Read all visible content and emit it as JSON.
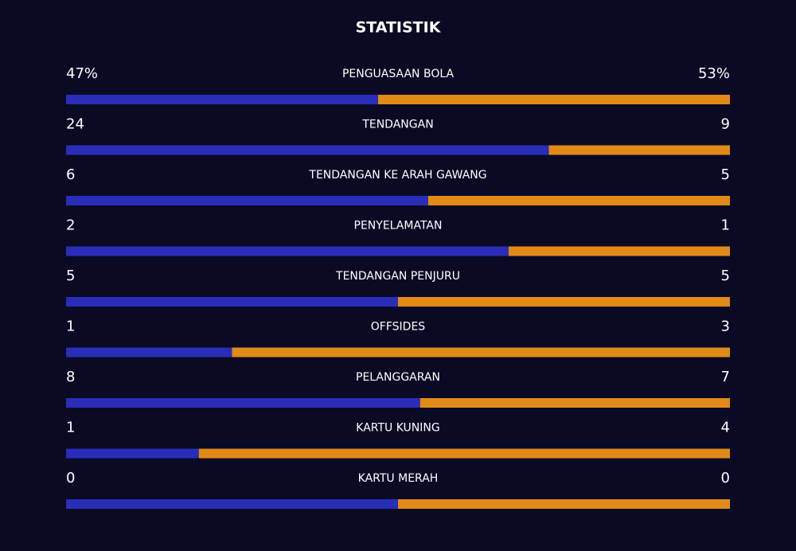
{
  "title": "STATISTIK",
  "colors": {
    "home": "#2a2db8",
    "away": "#e28a17"
  },
  "rows": [
    {
      "label": "PENGUASAAN BOLA",
      "home": 47,
      "away": 53,
      "home_label": "47%",
      "away_label": "53%"
    },
    {
      "label": "TENDANGAN",
      "home": 24,
      "away": 9
    },
    {
      "label": "TENDANGAN KE ARAH GAWANG",
      "home": 6,
      "away": 5
    },
    {
      "label": "PENYELAMATAN",
      "home": 2,
      "away": 1
    },
    {
      "label": "TENDANGAN PENJURU",
      "home": 5,
      "away": 5
    },
    {
      "label": "OFFSIDES",
      "home": 1,
      "away": 3
    },
    {
      "label": "PELANGGARAN",
      "home": 8,
      "away": 7
    },
    {
      "label": "KARTU KUNING",
      "home": 1,
      "away": 4
    },
    {
      "label": "KARTU MERAH",
      "home": 0,
      "away": 0
    }
  ]
}
